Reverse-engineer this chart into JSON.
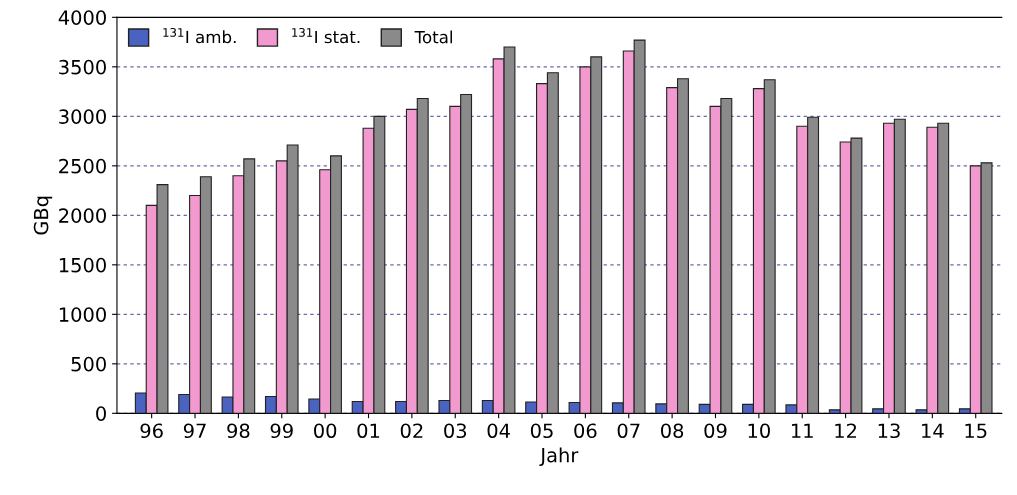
{
  "chart_data": {
    "type": "bar",
    "xlabel": "Jahr",
    "ylabel": "GBq",
    "categories": [
      "96",
      "97",
      "98",
      "99",
      "00",
      "01",
      "02",
      "03",
      "04",
      "05",
      "06",
      "07",
      "08",
      "09",
      "10",
      "11",
      "12",
      "13",
      "14",
      "15"
    ],
    "series": [
      {
        "name": "$^{131}$I amb.",
        "color": "#4a62c0",
        "values": [
          205,
          190,
          165,
          170,
          145,
          120,
          120,
          130,
          130,
          115,
          110,
          105,
          95,
          90,
          90,
          85,
          35,
          45,
          35,
          45
        ]
      },
      {
        "name": "$^{131}$I stat.",
        "color": "#f29ad0",
        "values": [
          2100,
          2200,
          2400,
          2550,
          2460,
          2880,
          3070,
          3100,
          3580,
          3330,
          3500,
          3660,
          3290,
          3100,
          3280,
          2900,
          2740,
          2930,
          2890,
          2500
        ]
      },
      {
        "name": "Total",
        "color": "#8a8a8a",
        "values": [
          2310,
          2390,
          2570,
          2710,
          2600,
          3000,
          3180,
          3220,
          3700,
          3440,
          3600,
          3770,
          3380,
          3180,
          3370,
          2990,
          2780,
          2970,
          2930,
          2530
        ]
      }
    ],
    "ylim": [
      0,
      4000
    ],
    "yticks": [
      0,
      500,
      1000,
      1500,
      2000,
      2500,
      3000,
      3500,
      4000
    ],
    "grid": "y",
    "legend": "top left"
  }
}
